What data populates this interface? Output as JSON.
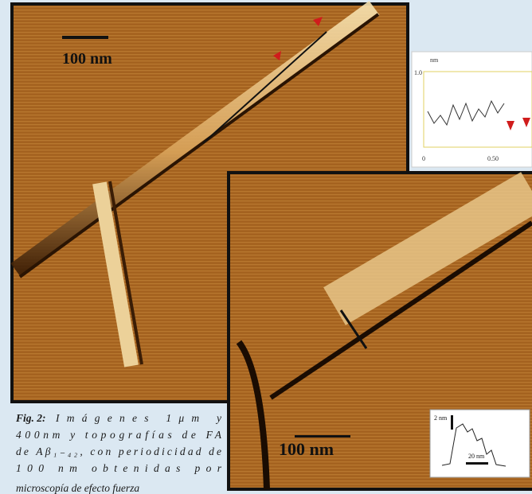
{
  "figure": {
    "image_1": {
      "scale_bar": "100 nm"
    },
    "profile_1": {
      "unit": "nm",
      "y_top": "1.0",
      "x_start": "0",
      "x_mid": "0.50"
    },
    "image_2": {
      "scale_bar": "100 nm"
    },
    "profile_2": {
      "y_scale": "2 nm",
      "x_scale": "20 nm"
    },
    "caption": {
      "label": "Fig. 2:",
      "lines": [
        "Imágenes 1μm y",
        "400nm y topografías de FA",
        "de Aβ₁₋₄₂, con periodicidad de",
        "100 nm obtenidas por",
        "microscopía de efecto fuerza"
      ]
    }
  }
}
